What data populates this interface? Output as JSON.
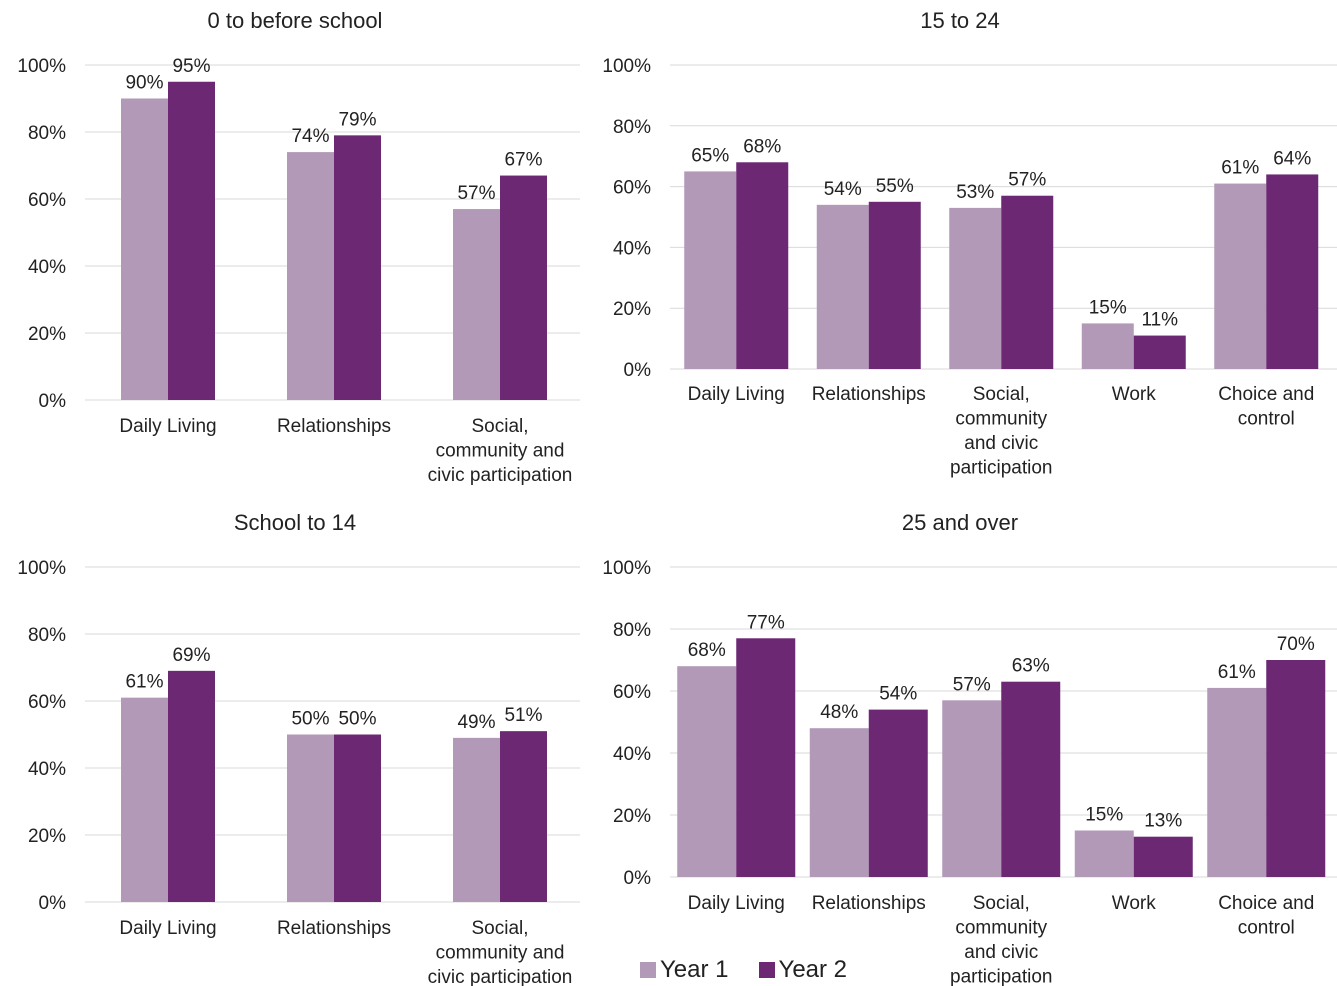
{
  "colors": {
    "year1": "#b299b8",
    "year2": "#6c2873",
    "grid": "#d9d9d9"
  },
  "legend": [
    {
      "name": "Year 1",
      "color": "#b299b8"
    },
    {
      "name": "Year 2",
      "color": "#6c2873"
    }
  ],
  "chart_data": [
    {
      "type": "bar",
      "title": "0 to before school",
      "ylim": [
        0,
        100
      ],
      "yticks": [
        "0%",
        "20%",
        "40%",
        "60%",
        "80%",
        "100%"
      ],
      "categories": [
        [
          "Daily Living"
        ],
        [
          "Relationships"
        ],
        [
          "Social,",
          "community and",
          "civic participation"
        ]
      ],
      "series": [
        {
          "name": "Year 1",
          "values": [
            90,
            74,
            57
          ]
        },
        {
          "name": "Year 2",
          "values": [
            95,
            79,
            67
          ]
        }
      ]
    },
    {
      "type": "bar",
      "title": "15 to 24",
      "ylim": [
        0,
        100
      ],
      "yticks": [
        "0%",
        "20%",
        "40%",
        "60%",
        "80%",
        "100%"
      ],
      "categories": [
        [
          "Daily Living"
        ],
        [
          "Relationships"
        ],
        [
          "Social,",
          "community",
          "and civic",
          "participation"
        ],
        [
          "Work"
        ],
        [
          "Choice and",
          "control"
        ]
      ],
      "series": [
        {
          "name": "Year 1",
          "values": [
            65,
            54,
            53,
            15,
            61
          ]
        },
        {
          "name": "Year 2",
          "values": [
            68,
            55,
            57,
            11,
            64
          ]
        }
      ]
    },
    {
      "type": "bar",
      "title": "School to 14",
      "ylim": [
        0,
        100
      ],
      "yticks": [
        "0%",
        "20%",
        "40%",
        "60%",
        "80%",
        "100%"
      ],
      "categories": [
        [
          "Daily Living"
        ],
        [
          "Relationships"
        ],
        [
          "Social,",
          "community and",
          "civic participation"
        ]
      ],
      "series": [
        {
          "name": "Year 1",
          "values": [
            61,
            50,
            49
          ]
        },
        {
          "name": "Year 2",
          "values": [
            69,
            50,
            51
          ]
        }
      ]
    },
    {
      "type": "bar",
      "title": "25 and over",
      "ylim": [
        0,
        100
      ],
      "yticks": [
        "0%",
        "20%",
        "40%",
        "60%",
        "80%",
        "100%"
      ],
      "categories": [
        [
          "Daily Living"
        ],
        [
          "Relationships"
        ],
        [
          "Social,",
          "community",
          "and civic",
          "participation"
        ],
        [
          "Work"
        ],
        [
          "Choice and",
          "control"
        ]
      ],
      "series": [
        {
          "name": "Year 1",
          "values": [
            68,
            48,
            57,
            15,
            61
          ]
        },
        {
          "name": "Year 2",
          "values": [
            77,
            54,
            63,
            13,
            70
          ]
        }
      ]
    }
  ]
}
